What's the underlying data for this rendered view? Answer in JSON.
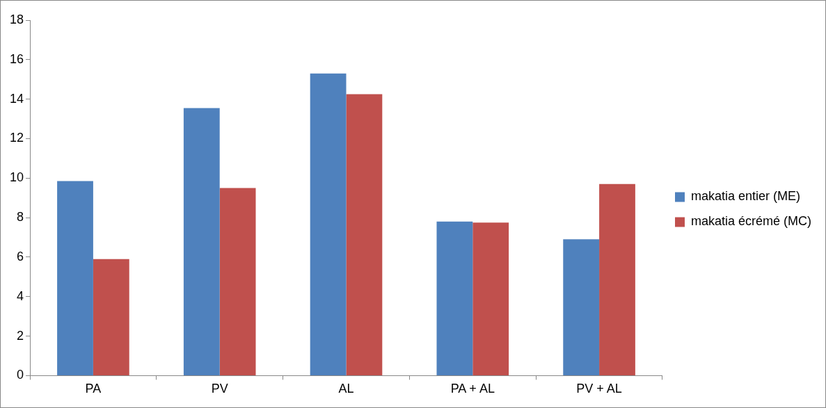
{
  "chart_data": {
    "type": "bar",
    "categories": [
      "PA",
      "PV",
      "AL",
      "PA + AL",
      "PV + AL"
    ],
    "series": [
      {
        "name": "makatia entier (ME)",
        "color": "#4f81bd",
        "values": [
          9.85,
          13.55,
          15.3,
          7.8,
          6.9
        ]
      },
      {
        "name": "makatia écrémé (MC)",
        "color": "#c0504d",
        "values": [
          5.9,
          9.5,
          14.25,
          7.75,
          9.7
        ]
      }
    ],
    "ylim": [
      0,
      18
    ],
    "yticks": [
      0,
      2,
      4,
      6,
      8,
      10,
      12,
      14,
      16,
      18
    ],
    "grid": false,
    "legend": "right"
  }
}
